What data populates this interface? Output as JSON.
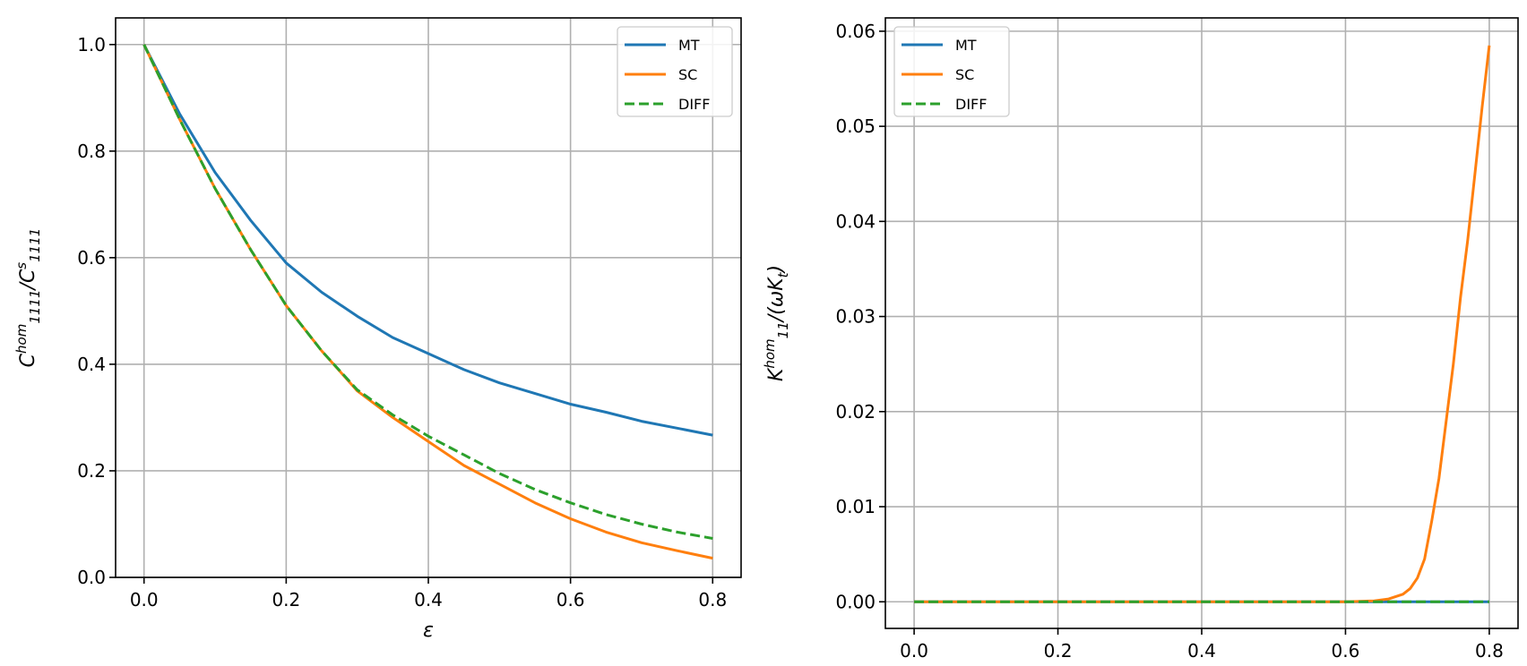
{
  "chart_data": [
    {
      "type": "line",
      "title": "",
      "xlabel": "ε",
      "ylabel_parts": [
        {
          "t": "C",
          "s": "base"
        },
        {
          "t": "hom",
          "s": "sup"
        },
        {
          "t": "1111",
          "s": "sub"
        },
        {
          "t": "/C",
          "s": "base"
        },
        {
          "t": "s",
          "s": "sup"
        },
        {
          "t": "1111",
          "s": "sub"
        }
      ],
      "xlim": [
        -0.04,
        0.84
      ],
      "ylim": [
        0,
        1.05
      ],
      "xticks": [
        0.0,
        0.2,
        0.4,
        0.6,
        0.8
      ],
      "xtick_labels": [
        "0.0",
        "0.2",
        "0.4",
        "0.6",
        "0.8"
      ],
      "yticks": [
        0.0,
        0.2,
        0.4,
        0.6,
        0.8,
        1.0
      ],
      "ytick_labels": [
        "0.0",
        "0.2",
        "0.4",
        "0.6",
        "0.8",
        "1.0"
      ],
      "grid": true,
      "legend": "top-right",
      "x": [
        0,
        0.05,
        0.1,
        0.15,
        0.2,
        0.25,
        0.3,
        0.35,
        0.4,
        0.45,
        0.5,
        0.55,
        0.6,
        0.65,
        0.7,
        0.75,
        0.8
      ],
      "series": [
        {
          "name": "MT",
          "color": "#1f77b4",
          "dash": false,
          "values": [
            1.0,
            0.87,
            0.76,
            0.67,
            0.59,
            0.535,
            0.49,
            0.45,
            0.42,
            0.39,
            0.365,
            0.345,
            0.325,
            0.31,
            0.293,
            0.28,
            0.267
          ]
        },
        {
          "name": "SC",
          "color": "#ff7f0e",
          "dash": false,
          "values": [
            1.0,
            0.86,
            0.73,
            0.615,
            0.51,
            0.425,
            0.35,
            0.3,
            0.255,
            0.21,
            0.175,
            0.14,
            0.11,
            0.085,
            0.065,
            0.05,
            0.036
          ]
        },
        {
          "name": "DIFF",
          "color": "#2ca02c",
          "dash": true,
          "values": [
            1.0,
            0.86,
            0.73,
            0.615,
            0.51,
            0.425,
            0.352,
            0.305,
            0.265,
            0.23,
            0.195,
            0.165,
            0.14,
            0.118,
            0.1,
            0.085,
            0.073
          ]
        }
      ]
    },
    {
      "type": "line",
      "title": "",
      "xlabel": "ε",
      "ylabel_parts": [
        {
          "t": "K",
          "s": "base"
        },
        {
          "t": "hom",
          "s": "sup"
        },
        {
          "t": "11",
          "s": "sub"
        },
        {
          "t": "/(ωK",
          "s": "base"
        },
        {
          "t": "t",
          "s": "sub"
        },
        {
          "t": ")",
          "s": "base"
        }
      ],
      "xlim": [
        -0.04,
        0.84
      ],
      "ylim": [
        -0.0028,
        0.0614
      ],
      "xticks": [
        0.0,
        0.2,
        0.4,
        0.6,
        0.8
      ],
      "xtick_labels": [
        "0.0",
        "0.2",
        "0.4",
        "0.6",
        "0.8"
      ],
      "yticks": [
        0.0,
        0.01,
        0.02,
        0.03,
        0.04,
        0.05,
        0.06
      ],
      "ytick_labels": [
        "0.00",
        "0.01",
        "0.02",
        "0.03",
        "0.04",
        "0.05",
        "0.06"
      ],
      "grid": true,
      "legend": "top-left",
      "x": [
        0,
        0.1,
        0.2,
        0.3,
        0.4,
        0.5,
        0.6,
        0.64,
        0.66,
        0.68,
        0.69,
        0.7,
        0.71,
        0.72,
        0.73,
        0.74,
        0.75,
        0.76,
        0.77,
        0.78,
        0.79,
        0.8
      ],
      "series": [
        {
          "name": "MT",
          "color": "#1f77b4",
          "dash": false,
          "values": [
            0,
            0,
            0,
            0,
            0,
            0,
            0,
            0,
            0,
            0,
            0,
            0,
            0,
            0,
            0,
            0,
            0,
            0,
            0,
            0,
            0,
            0
          ]
        },
        {
          "name": "SC",
          "color": "#ff7f0e",
          "dash": false,
          "values": [
            0,
            0,
            0,
            0,
            0,
            0,
            0,
            0.0001,
            0.0003,
            0.0008,
            0.0014,
            0.0025,
            0.0045,
            0.0085,
            0.013,
            0.019,
            0.025,
            0.032,
            0.038,
            0.045,
            0.052,
            0.0585
          ]
        },
        {
          "name": "DIFF",
          "color": "#2ca02c",
          "dash": true,
          "values": [
            0,
            0,
            0,
            0,
            0,
            0,
            0,
            0,
            0,
            0,
            0,
            0,
            0,
            0,
            0,
            0,
            0,
            0,
            0,
            0,
            0,
            0
          ]
        }
      ]
    }
  ]
}
